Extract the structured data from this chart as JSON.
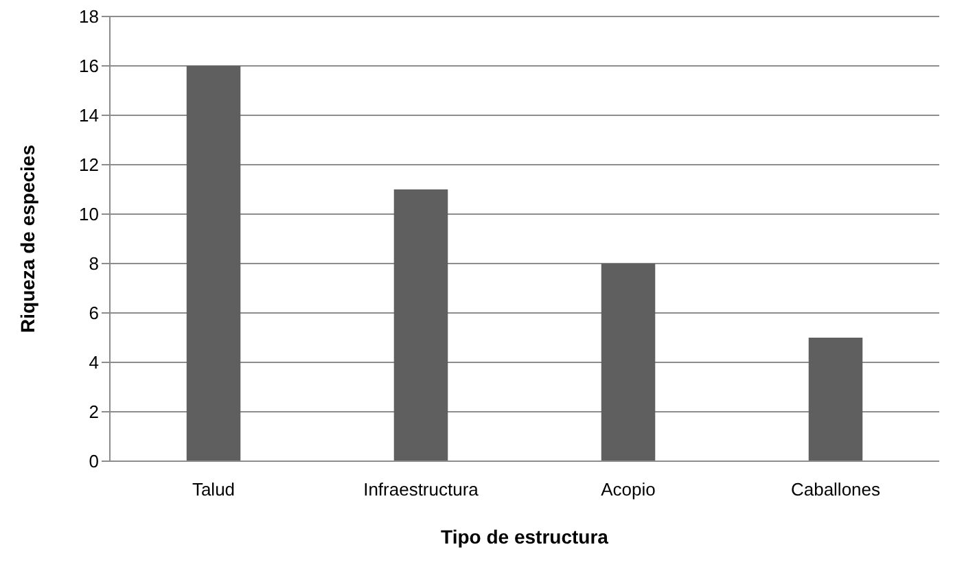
{
  "chart_data": {
    "type": "bar",
    "xlabel": "Tipo de estructura",
    "ylabel": "Riqueza de especies",
    "categories": [
      "Talud",
      "Infraestructura",
      "Acopio",
      "Caballones"
    ],
    "values": [
      16,
      11,
      8,
      5
    ],
    "color": "#5f5f5f",
    "ylim": [
      0,
      18
    ],
    "yticks": [
      0,
      2,
      4,
      6,
      8,
      10,
      12,
      14,
      16,
      18
    ],
    "grid": "y"
  }
}
